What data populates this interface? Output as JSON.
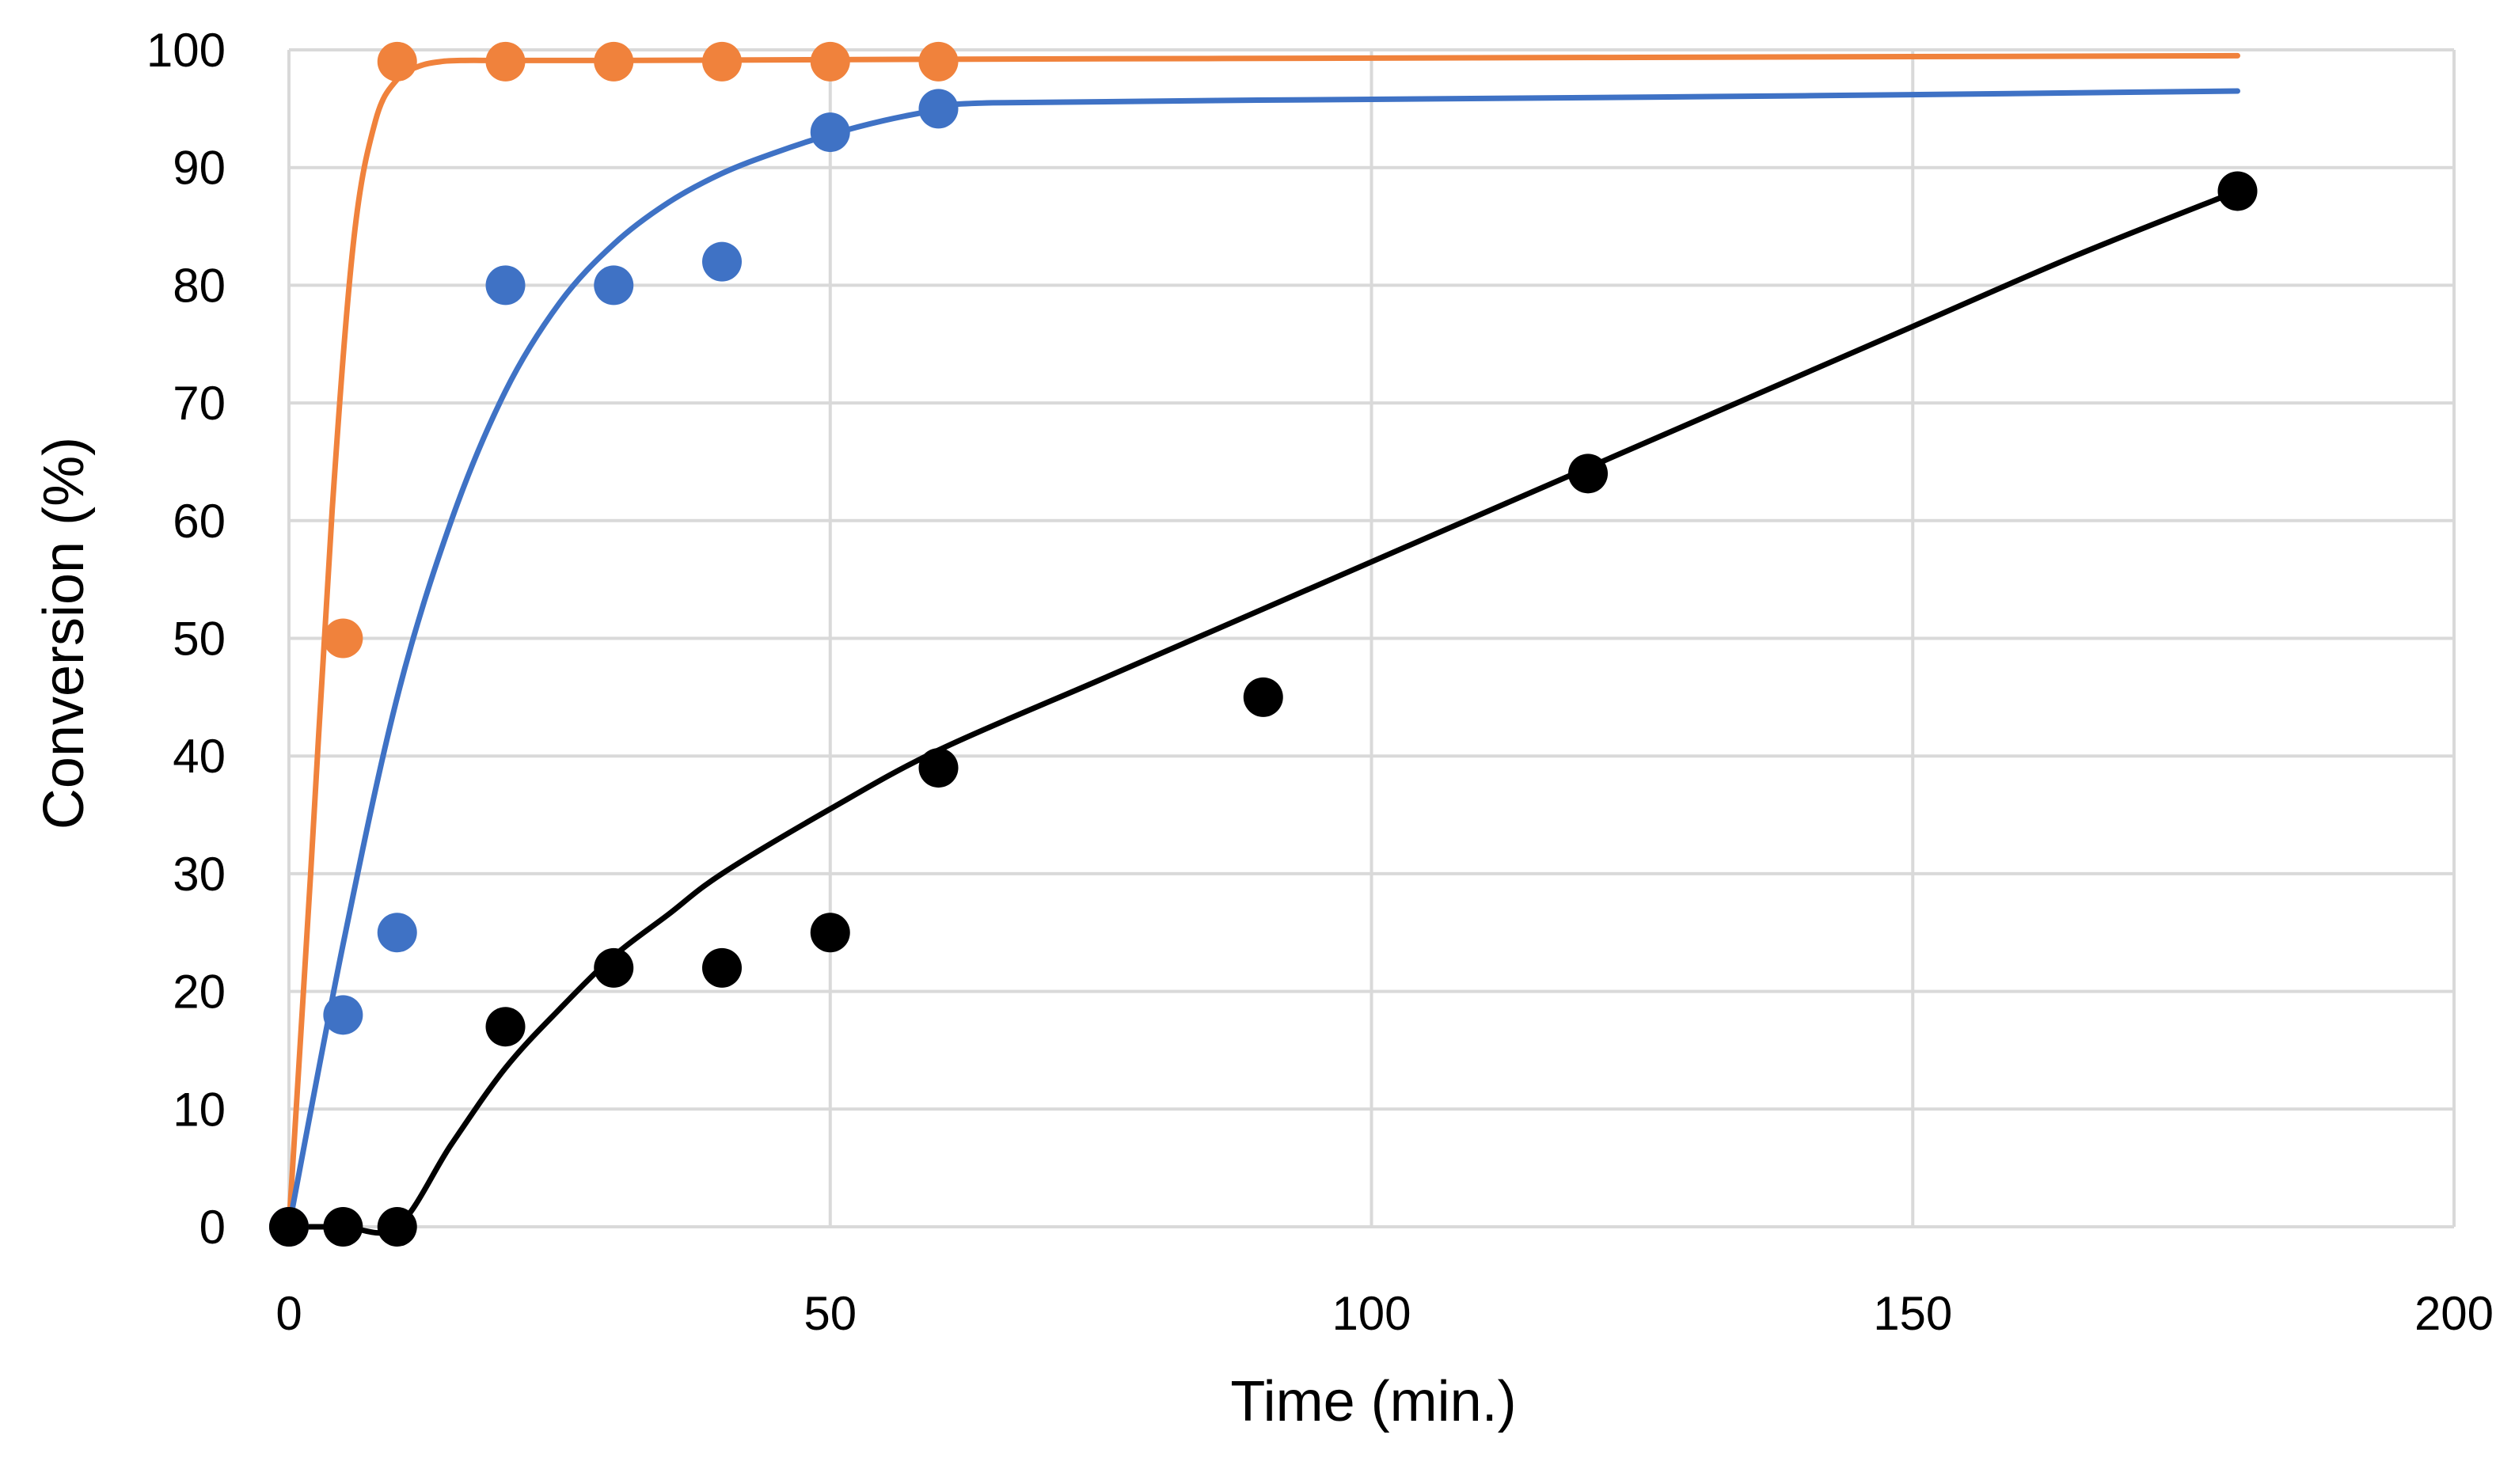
{
  "chart_data": {
    "type": "scatter",
    "title": "",
    "xlabel": "Time (min.)",
    "ylabel": "Conversion (%)",
    "xlim": [
      0,
      200
    ],
    "ylim": [
      0,
      100
    ],
    "xticks": [
      0,
      50,
      100,
      150,
      200
    ],
    "yticks": [
      0,
      10,
      20,
      30,
      40,
      50,
      60,
      70,
      80,
      90,
      100
    ],
    "xtick_labels": [
      "0",
      "50",
      "100",
      "150",
      "200"
    ],
    "ytick_labels": [
      "0",
      "10",
      "20",
      "30",
      "40",
      "50",
      "60",
      "70",
      "80",
      "90",
      "100"
    ],
    "grid": true,
    "legend": "none",
    "series": [
      {
        "name": "orange",
        "color": "#F0823C",
        "points": {
          "x": [
            0,
            5,
            10,
            20,
            30,
            40,
            50,
            60
          ],
          "y": [
            0,
            50,
            99,
            99,
            99,
            99,
            99,
            99
          ]
        },
        "fit": {
          "x": [
            0,
            2,
            4,
            6,
            8,
            10,
            12,
            14,
            16,
            20,
            30,
            60,
            100,
            140,
            180
          ],
          "y": [
            0,
            30,
            61,
            84,
            94,
            97.5,
            98.6,
            99,
            99.1,
            99.1,
            99.1,
            99.2,
            99.3,
            99.4,
            99.5
          ]
        }
      },
      {
        "name": "blue",
        "color": "#3F72C5",
        "points": {
          "x": [
            0,
            5,
            10,
            20,
            30,
            40,
            50,
            60
          ],
          "y": [
            0,
            18,
            25,
            80,
            80,
            82,
            93,
            95
          ]
        },
        "fit": {
          "x": [
            0,
            5,
            10,
            15,
            20,
            25,
            30,
            35,
            40,
            45,
            50,
            55,
            60,
            65,
            100,
            140,
            180
          ],
          "y": [
            0,
            24,
            45,
            60,
            71,
            78.5,
            83.5,
            87,
            89.5,
            91.3,
            92.8,
            94,
            94.9,
            95.5,
            95.8,
            96.1,
            96.5
          ]
        }
      },
      {
        "name": "black",
        "color": "#000000",
        "points": {
          "x": [
            0,
            5,
            10,
            20,
            30,
            40,
            50,
            60,
            90,
            120,
            180
          ],
          "y": [
            0,
            0,
            0,
            17,
            22,
            22,
            25,
            39,
            45,
            64,
            88
          ]
        },
        "fit": {
          "x": [
            0,
            5,
            10,
            15,
            20,
            25,
            30,
            35,
            40,
            50,
            60,
            75,
            90,
            105,
            120,
            135,
            150,
            165,
            180
          ],
          "y": [
            0,
            0,
            0,
            7,
            13.5,
            18.5,
            23,
            26.5,
            30,
            35.5,
            40.5,
            46.5,
            52.5,
            58.5,
            64.5,
            70.5,
            76.5,
            82.5,
            88
          ]
        }
      }
    ]
  }
}
